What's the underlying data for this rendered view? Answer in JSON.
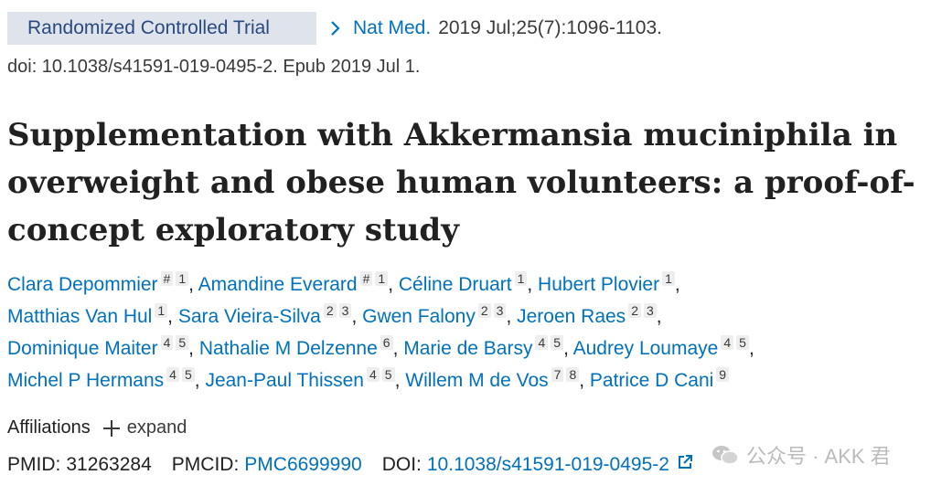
{
  "header": {
    "badge": "Randomized Controlled Trial",
    "journal": "Nat Med.",
    "citation": "2019 Jul;25(7):1096-1103.",
    "doi_line": "doi: 10.1038/s41591-019-0495-2. Epub 2019 Jul 1."
  },
  "title": "Supplementation with Akkermansia muciniphila in overweight and obese human volunteers: a proof-of-concept exploratory study",
  "authors": [
    {
      "name": "Clara Depommier",
      "sups": [
        "#",
        "1"
      ]
    },
    {
      "name": "Amandine Everard",
      "sups": [
        "#",
        "1"
      ]
    },
    {
      "name": "Céline Druart",
      "sups": [
        "1"
      ]
    },
    {
      "name": "Hubert Plovier",
      "sups": [
        "1"
      ]
    },
    {
      "name": "Matthias Van Hul",
      "sups": [
        "1"
      ]
    },
    {
      "name": "Sara Vieira-Silva",
      "sups": [
        "2",
        "3"
      ]
    },
    {
      "name": "Gwen Falony",
      "sups": [
        "2",
        "3"
      ]
    },
    {
      "name": "Jeroen Raes",
      "sups": [
        "2",
        "3"
      ]
    },
    {
      "name": "Dominique Maiter",
      "sups": [
        "4",
        "5"
      ]
    },
    {
      "name": "Nathalie M Delzenne",
      "sups": [
        "6"
      ]
    },
    {
      "name": "Marie de Barsy",
      "sups": [
        "4",
        "5"
      ]
    },
    {
      "name": "Audrey Loumaye",
      "sups": [
        "4",
        "5"
      ]
    },
    {
      "name": "Michel P Hermans",
      "sups": [
        "4",
        "5"
      ]
    },
    {
      "name": "Jean-Paul Thissen",
      "sups": [
        "4",
        "5"
      ]
    },
    {
      "name": "Willem M de Vos",
      "sups": [
        "7",
        "8"
      ]
    },
    {
      "name": "Patrice D Cani",
      "sups": [
        "9"
      ]
    }
  ],
  "affiliations": {
    "label": "Affiliations",
    "expand": "expand"
  },
  "ids": {
    "pmid_label": "PMID:",
    "pmid": "31263284",
    "pmcid_label": "PMCID:",
    "pmcid": "PMC6699990",
    "doi_label": "DOI:",
    "doi": "10.1038/s41591-019-0495-2"
  },
  "watermark": {
    "text": "公众号 · AKK 君"
  },
  "colors": {
    "link": "#0071bc",
    "badge_bg": "#dfe3ec",
    "badge_text": "#2a4a7f",
    "text": "#212121"
  },
  "icons": [
    "chevron-right-icon",
    "plus-icon",
    "external-link-icon",
    "wechat-icon"
  ]
}
